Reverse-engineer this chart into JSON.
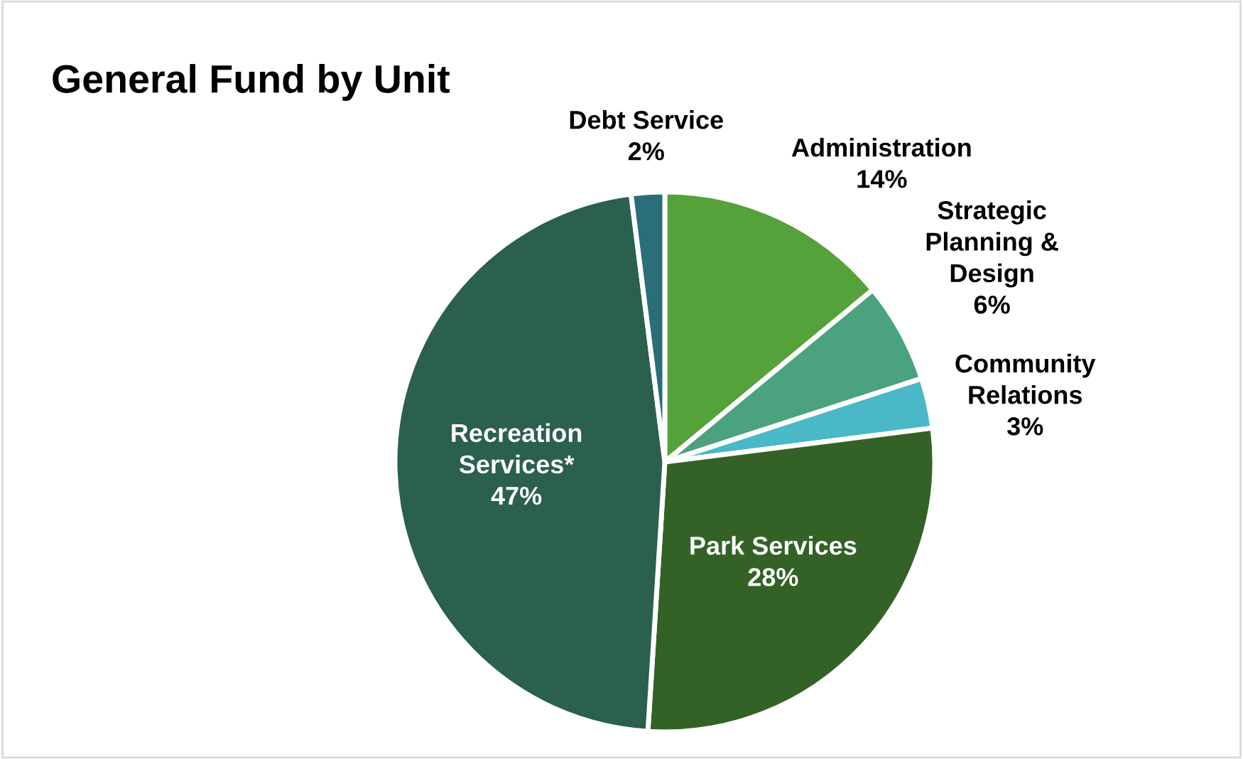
{
  "chart_data": {
    "type": "pie",
    "title": "General Fund by Unit",
    "categories": [
      "Administration",
      "Strategic\nPlanning &\nDesign",
      "Community\nRelations",
      "Park Services",
      "Recreation\nServices*",
      "Debt Service"
    ],
    "values": [
      14,
      6,
      3,
      28,
      47,
      2
    ],
    "colors": [
      "#55a13a",
      "#4aa37e",
      "#4ab8c6",
      "#346226",
      "#2b5f4e",
      "#2a6e7a"
    ],
    "value_labels": [
      "14%",
      "6%",
      "3%",
      "28%",
      "47%",
      "2%"
    ]
  }
}
